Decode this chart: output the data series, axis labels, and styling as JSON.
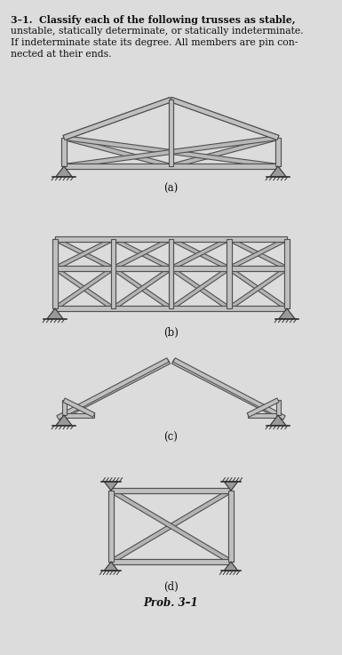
{
  "title": "Prob. 3–1",
  "problem_text_line1": "3–1.  Classify each of the following trusses as stable,",
  "problem_text_line2": "unstable, statically determinate, or statically indeterminate.",
  "problem_text_line3": "If indeterminate state its degree. All members are pin con-",
  "problem_text_line4": "nected at their ends.",
  "bg_color": "#dcdcdc",
  "member_face": "#c0c0c0",
  "member_edge": "#585858",
  "labels": [
    "(a)",
    "(b)",
    "(c)",
    "(d)"
  ],
  "label_fontsize": 8.5,
  "title_fontsize": 8.5
}
